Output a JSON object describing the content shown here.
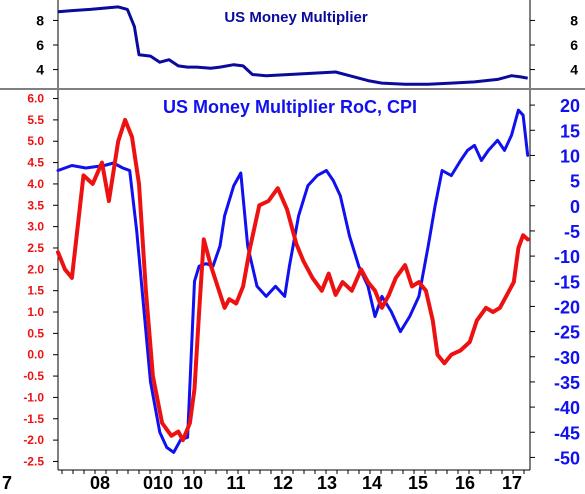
{
  "chart_data": [
    {
      "type": "line",
      "title": "US Money Multiplier",
      "x_range": [
        2007.0,
        2017.2
      ],
      "ylim": [
        2.5,
        9.5
      ],
      "y_ticks_left": [
        "8",
        "6",
        "4"
      ],
      "y_ticks_right": [
        "8",
        "6",
        "4"
      ],
      "series": [
        {
          "color": "#0a0a9c",
          "points": [
            [
              2007.0,
              8.7
            ],
            [
              2007.3,
              8.8
            ],
            [
              2007.7,
              8.9
            ],
            [
              2008.0,
              9.0
            ],
            [
              2008.3,
              9.1
            ],
            [
              2008.5,
              8.9
            ],
            [
              2008.65,
              7.5
            ],
            [
              2008.75,
              5.2
            ],
            [
              2009.0,
              5.1
            ],
            [
              2009.2,
              4.6
            ],
            [
              2009.4,
              4.8
            ],
            [
              2009.6,
              4.3
            ],
            [
              2009.8,
              4.2
            ],
            [
              2010.0,
              4.2
            ],
            [
              2010.3,
              4.1
            ],
            [
              2010.5,
              4.2
            ],
            [
              2010.8,
              4.4
            ],
            [
              2011.0,
              4.3
            ],
            [
              2011.2,
              3.6
            ],
            [
              2011.5,
              3.5
            ],
            [
              2012.0,
              3.6
            ],
            [
              2012.5,
              3.7
            ],
            [
              2013.0,
              3.8
            ],
            [
              2013.3,
              3.5
            ],
            [
              2013.7,
              3.1
            ],
            [
              2014.0,
              2.9
            ],
            [
              2014.5,
              2.8
            ],
            [
              2015.0,
              2.8
            ],
            [
              2015.5,
              2.9
            ],
            [
              2016.0,
              3.0
            ],
            [
              2016.5,
              3.2
            ],
            [
              2016.8,
              3.5
            ],
            [
              2017.0,
              3.4
            ],
            [
              2017.15,
              3.3
            ]
          ]
        }
      ]
    },
    {
      "type": "line",
      "title": "US Money Multiplier RoC, CPI",
      "x_categories": [
        "7",
        "08",
        "010",
        "10",
        "11",
        "12",
        "13",
        "14",
        "15",
        "16",
        "17"
      ],
      "x_range": [
        2007.0,
        2017.2
      ],
      "y_left": {
        "min": -2.7,
        "max": 6.2,
        "ticks": [
          "6.0",
          "5.5",
          "5.0",
          "4.5",
          "4.0",
          "3.5",
          "3.0",
          "2.5",
          "2.0",
          "1.5",
          "1.0",
          "0.5",
          "0.0",
          "-0.5",
          "-1.0",
          "-1.5",
          "-2.0",
          "-2.5"
        ]
      },
      "y_right": {
        "min": -52.5,
        "max": 23,
        "ticks": [
          "20",
          "15",
          "10",
          "5",
          "0",
          "-5",
          "-10",
          "-15",
          "-20",
          "-25",
          "-30",
          "-35",
          "-40",
          "-45",
          "-50"
        ]
      },
      "series": [
        {
          "color": "#1010f0",
          "axis": "right",
          "points": [
            [
              2007.0,
              7.0
            ],
            [
              2007.3,
              8.0
            ],
            [
              2007.6,
              7.5
            ],
            [
              2008.0,
              8.0
            ],
            [
              2008.2,
              8.5
            ],
            [
              2008.4,
              7.5
            ],
            [
              2008.55,
              7.0
            ],
            [
              2008.7,
              -5.0
            ],
            [
              2008.85,
              -20.0
            ],
            [
              2009.0,
              -35.0
            ],
            [
              2009.2,
              -45.0
            ],
            [
              2009.35,
              -48.0
            ],
            [
              2009.5,
              -49.0
            ],
            [
              2009.65,
              -46.5
            ],
            [
              2009.8,
              -46.0
            ],
            [
              2009.95,
              -15.0
            ],
            [
              2010.05,
              -12.0
            ],
            [
              2010.2,
              -11.5
            ],
            [
              2010.35,
              -12.0
            ],
            [
              2010.5,
              -8.0
            ],
            [
              2010.6,
              -2.0
            ],
            [
              2010.8,
              4.0
            ],
            [
              2010.95,
              6.5
            ],
            [
              2011.1,
              -8.0
            ],
            [
              2011.3,
              -16.0
            ],
            [
              2011.5,
              -18.0
            ],
            [
              2011.7,
              -16.0
            ],
            [
              2011.9,
              -18.0
            ],
            [
              2012.0,
              -12.0
            ],
            [
              2012.2,
              -2.0
            ],
            [
              2012.4,
              4.0
            ],
            [
              2012.6,
              6.0
            ],
            [
              2012.8,
              7.0
            ],
            [
              2012.95,
              5.0
            ],
            [
              2013.1,
              2.0
            ],
            [
              2013.3,
              -6.0
            ],
            [
              2013.5,
              -12.0
            ],
            [
              2013.7,
              -16.0
            ],
            [
              2013.85,
              -22.0
            ],
            [
              2014.0,
              -18.0
            ],
            [
              2014.2,
              -21.0
            ],
            [
              2014.4,
              -25.0
            ],
            [
              2014.6,
              -22.0
            ],
            [
              2014.8,
              -18.0
            ],
            [
              2015.0,
              -8.0
            ],
            [
              2015.15,
              0.0
            ],
            [
              2015.3,
              7.0
            ],
            [
              2015.5,
              6.0
            ],
            [
              2015.7,
              9.0
            ],
            [
              2015.85,
              11.0
            ],
            [
              2016.0,
              12.0
            ],
            [
              2016.15,
              9.0
            ],
            [
              2016.3,
              11.0
            ],
            [
              2016.5,
              13.0
            ],
            [
              2016.65,
              11.0
            ],
            [
              2016.8,
              14.0
            ],
            [
              2016.95,
              19.0
            ],
            [
              2017.05,
              18.0
            ],
            [
              2017.15,
              10.0
            ]
          ]
        },
        {
          "color": "#ee1111",
          "axis": "left",
          "points": [
            [
              2007.0,
              2.4
            ],
            [
              2007.15,
              2.0
            ],
            [
              2007.3,
              1.8
            ],
            [
              2007.55,
              4.2
            ],
            [
              2007.75,
              4.0
            ],
            [
              2007.95,
              4.5
            ],
            [
              2008.1,
              3.6
            ],
            [
              2008.3,
              5.0
            ],
            [
              2008.45,
              5.5
            ],
            [
              2008.6,
              5.1
            ],
            [
              2008.75,
              4.0
            ],
            [
              2008.9,
              1.5
            ],
            [
              2009.05,
              -0.5
            ],
            [
              2009.25,
              -1.6
            ],
            [
              2009.45,
              -1.9
            ],
            [
              2009.6,
              -1.8
            ],
            [
              2009.7,
              -2.0
            ],
            [
              2009.85,
              -1.6
            ],
            [
              2009.95,
              -0.8
            ],
            [
              2010.05,
              1.0
            ],
            [
              2010.15,
              2.7
            ],
            [
              2010.3,
              2.1
            ],
            [
              2010.45,
              1.6
            ],
            [
              2010.6,
              1.1
            ],
            [
              2010.7,
              1.3
            ],
            [
              2010.85,
              1.2
            ],
            [
              2011.0,
              1.6
            ],
            [
              2011.15,
              2.5
            ],
            [
              2011.35,
              3.5
            ],
            [
              2011.55,
              3.6
            ],
            [
              2011.75,
              3.9
            ],
            [
              2011.95,
              3.4
            ],
            [
              2012.15,
              2.6
            ],
            [
              2012.3,
              2.2
            ],
            [
              2012.5,
              1.8
            ],
            [
              2012.7,
              1.5
            ],
            [
              2012.85,
              1.9
            ],
            [
              2013.0,
              1.4
            ],
            [
              2013.15,
              1.7
            ],
            [
              2013.35,
              1.5
            ],
            [
              2013.55,
              2.0
            ],
            [
              2013.7,
              1.7
            ],
            [
              2013.85,
              1.5
            ],
            [
              2014.0,
              1.1
            ],
            [
              2014.15,
              1.4
            ],
            [
              2014.3,
              1.8
            ],
            [
              2014.5,
              2.1
            ],
            [
              2014.65,
              1.6
            ],
            [
              2014.8,
              1.7
            ],
            [
              2014.95,
              1.5
            ],
            [
              2015.1,
              0.8
            ],
            [
              2015.2,
              0.0
            ],
            [
              2015.35,
              -0.2
            ],
            [
              2015.5,
              0.0
            ],
            [
              2015.7,
              0.1
            ],
            [
              2015.9,
              0.3
            ],
            [
              2016.05,
              0.8
            ],
            [
              2016.25,
              1.1
            ],
            [
              2016.4,
              1.0
            ],
            [
              2016.55,
              1.1
            ],
            [
              2016.7,
              1.4
            ],
            [
              2016.85,
              1.7
            ],
            [
              2016.95,
              2.5
            ],
            [
              2017.05,
              2.8
            ],
            [
              2017.15,
              2.7
            ]
          ]
        }
      ]
    }
  ]
}
